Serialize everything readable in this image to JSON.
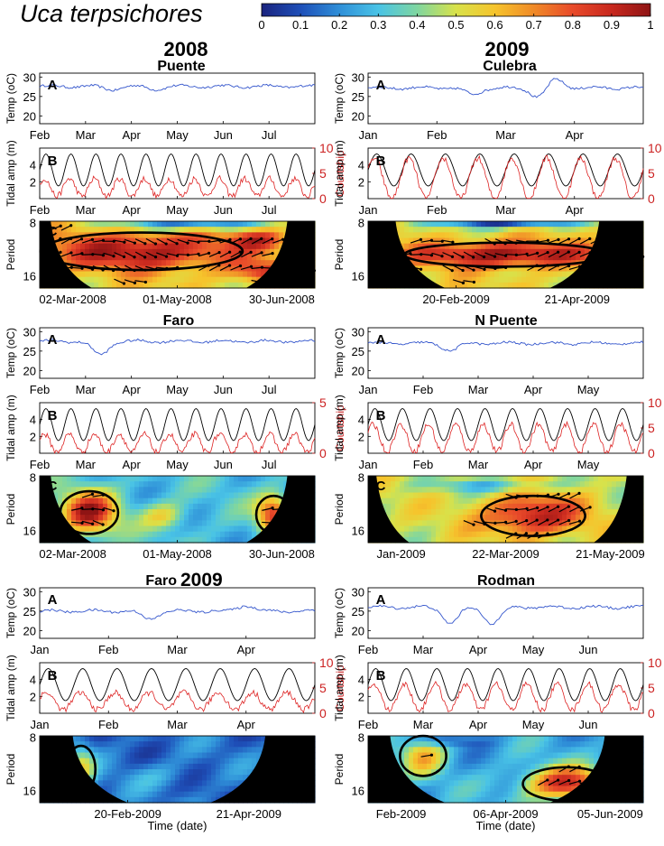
{
  "figure": {
    "title": "Uca terpsichores",
    "colorbar": {
      "ticks": [
        "0",
        "0.1",
        "0.2",
        "0.3",
        "0.4",
        "0.5",
        "0.6",
        "0.7",
        "0.8",
        "0.9",
        "1"
      ],
      "colors": [
        "#1a237e",
        "#1e4fb8",
        "#2f8fd8",
        "#49c3e6",
        "#7fd6a0",
        "#d8e24a",
        "#f6c42c",
        "#f08a28",
        "#e84a2a",
        "#c8281e",
        "#8e1414"
      ]
    },
    "year_labels": {
      "left": "2008",
      "right": "2009",
      "faro2009_prefix": "Faro",
      "faro2009_year": "2009"
    },
    "panel_letters": {
      "a": "A",
      "b": "B",
      "c": "C"
    },
    "axis_labels": {
      "temp": "Temp (",
      "temp_unit": "oC)",
      "tidal": "Tidal amp (m)",
      "courtship": "Courtship",
      "period": "Period",
      "time": "Time (date)"
    }
  },
  "chart_data": [
    {
      "site": "Puente",
      "year": "2008",
      "temp": {
        "type": "line",
        "ylim": [
          18,
          31
        ],
        "yticks": [
          "20",
          "25",
          "30"
        ],
        "xticks": [
          "Feb",
          "Mar",
          "Apr",
          "May",
          "Jun",
          "Jul"
        ],
        "base": 27.6,
        "dips": [
          [
            0.26,
            26.8
          ],
          [
            0.42,
            26.9
          ]
        ],
        "color": "#3355cc"
      },
      "tide": {
        "type": "line",
        "ylim_left": [
          0,
          6
        ],
        "yticks_left": [
          "2",
          "4"
        ],
        "ylim_right": [
          0,
          10
        ],
        "yticks_right": [
          "0",
          "5",
          "10"
        ],
        "xticks": [
          "Feb",
          "Mar",
          "Apr",
          "May",
          "Jun",
          "Jul"
        ],
        "cycles": 11,
        "courtship_scale": 0.8,
        "courtship_mid": 2.2
      },
      "wavelet": {
        "type": "heatmap",
        "yticks": [
          "8",
          "16"
        ],
        "xticks": [
          "02-Mar-2008",
          "01-May-2008",
          "30-Jun-2008"
        ],
        "coi_left": 0.04,
        "coi_right": 0.9,
        "cone_depth": 0.15,
        "background": 0.55,
        "blobs": [
          [
            0.37,
            0.45,
            0.35,
            0.28,
            0.42
          ],
          [
            0.8,
            0.28,
            0.1,
            0.15,
            0.3
          ],
          [
            0.82,
            0.75,
            0.12,
            0.15,
            0.3
          ],
          [
            0.55,
            0.05,
            0.25,
            0.08,
            -0.45
          ]
        ]
      }
    },
    {
      "site": "Culebra",
      "year": "2009",
      "temp": {
        "type": "line",
        "ylim": [
          18,
          31
        ],
        "yticks": [
          "20",
          "25",
          "30"
        ],
        "xticks": [
          "Jan",
          "Feb",
          "Mar",
          "Apr"
        ],
        "base": 27.2,
        "dips": [
          [
            0.38,
            25.5
          ],
          [
            0.62,
            24.8
          ],
          [
            0.68,
            29.5
          ]
        ],
        "color": "#3355cc"
      },
      "tide": {
        "type": "line",
        "ylim_left": [
          0,
          6
        ],
        "yticks_left": [
          "2",
          "4"
        ],
        "ylim_right": [
          0,
          10
        ],
        "yticks_right": [
          "0",
          "5",
          "10"
        ],
        "xticks": [
          "Jan",
          "Feb",
          "Mar",
          "Apr"
        ],
        "cycles": 8,
        "courtship_scale": 1.0,
        "courtship_mid": 4.0
      },
      "wavelet": {
        "type": "heatmap",
        "yticks": [
          "8",
          "16"
        ],
        "xticks": [
          "20-Feb-2009",
          "21-Apr-2009"
        ],
        "coi_left": 0.1,
        "coi_right": 0.84,
        "cone_depth": 0.18,
        "background": 0.55,
        "blobs": [
          [
            0.5,
            0.5,
            0.35,
            0.18,
            0.45
          ],
          [
            0.5,
            0.05,
            0.25,
            0.06,
            -0.5
          ]
        ]
      }
    },
    {
      "site": "Faro",
      "year": "2008",
      "temp": {
        "type": "line",
        "ylim": [
          18,
          31
        ],
        "yticks": [
          "20",
          "25",
          "30"
        ],
        "xticks": [
          "Feb",
          "Mar",
          "Apr",
          "May",
          "Jun",
          "Jul"
        ],
        "base": 27.5,
        "dips": [
          [
            0.22,
            24.0
          ]
        ],
        "color": "#3355cc"
      },
      "tide": {
        "type": "line",
        "ylim_left": [
          0,
          6
        ],
        "yticks_left": [
          "2",
          "4"
        ],
        "ylim_right": [
          0,
          5
        ],
        "yticks_right": [
          "0",
          "5"
        ],
        "xticks": [
          "Feb",
          "Mar",
          "Apr",
          "May",
          "Jun",
          "Jul"
        ],
        "cycles": 11,
        "courtship_scale": 0.9,
        "courtship_mid": 2.0
      },
      "wavelet": {
        "type": "heatmap",
        "yticks": [
          "8",
          "16"
        ],
        "xticks": [
          "02-Mar-2008",
          "01-May-2008",
          "30-Jun-2008"
        ],
        "coi_left": 0.04,
        "coi_right": 0.9,
        "cone_depth": 0.15,
        "background": 0.3,
        "blobs": [
          [
            0.18,
            0.55,
            0.1,
            0.32,
            0.65
          ],
          [
            0.45,
            0.6,
            0.08,
            0.2,
            0.25
          ],
          [
            0.85,
            0.58,
            0.06,
            0.28,
            0.55
          ]
        ]
      }
    },
    {
      "site": "N Puente",
      "year": "2009",
      "temp": {
        "type": "line",
        "ylim": [
          18,
          31
        ],
        "yticks": [
          "20",
          "25",
          "30"
        ],
        "xticks": [
          "Jan",
          "Feb",
          "Mar",
          "Apr",
          "May"
        ],
        "base": 27.0,
        "dips": [
          [
            0.3,
            25.2
          ]
        ],
        "color": "#3355cc"
      },
      "tide": {
        "type": "line",
        "ylim_left": [
          0,
          6
        ],
        "yticks_left": [
          "2",
          "4"
        ],
        "ylim_right": [
          0,
          10
        ],
        "yticks_right": [
          "0",
          "5",
          "10"
        ],
        "xticks": [
          "Jan",
          "Feb",
          "Mar",
          "Apr",
          "May"
        ],
        "cycles": 10,
        "courtship_scale": 0.9,
        "courtship_mid": 3.0
      },
      "wavelet": {
        "type": "heatmap",
        "yticks": [
          "8",
          "16"
        ],
        "xticks": [
          "Jan-2009",
          "22-Mar-2009",
          "21-May-2009"
        ],
        "coi_left": 0.03,
        "coi_right": 0.94,
        "cone_depth": 0.12,
        "background": 0.5,
        "blobs": [
          [
            0.6,
            0.6,
            0.18,
            0.3,
            0.45
          ],
          [
            0.45,
            0.15,
            0.25,
            0.1,
            -0.2
          ]
        ]
      }
    },
    {
      "site": "Faro",
      "year": "2009",
      "temp": {
        "type": "line",
        "ylim": [
          18,
          31
        ],
        "yticks": [
          "20",
          "25",
          "30"
        ],
        "xticks": [
          "Jan",
          "Feb",
          "Mar",
          "Apr"
        ],
        "base": 25.0,
        "dips": [
          [
            0.4,
            23.0
          ],
          [
            0.75,
            26.5
          ]
        ],
        "color": "#3355cc"
      },
      "tide": {
        "type": "line",
        "ylim_left": [
          0,
          6
        ],
        "yticks_left": [
          "2",
          "4"
        ],
        "ylim_right": [
          0,
          10
        ],
        "yticks_right": [
          "0",
          "5",
          "10"
        ],
        "xticks": [
          "Jan",
          "Feb",
          "Mar",
          "Apr"
        ],
        "cycles": 8,
        "courtship_scale": 0.7,
        "courtship_mid": 2.4
      },
      "wavelet": {
        "type": "heatmap",
        "yticks": [
          "8",
          "16"
        ],
        "xticks": [
          "20-Feb-2009",
          "21-Apr-2009"
        ],
        "coi_left": 0.12,
        "coi_right": 0.82,
        "cone_depth": 0.2,
        "background": 0.15,
        "blobs": [
          [
            0.15,
            0.5,
            0.05,
            0.35,
            0.35
          ],
          [
            0.42,
            0.6,
            0.12,
            0.2,
            0.1
          ]
        ]
      }
    },
    {
      "site": "Rodman",
      "year": "2009",
      "temp": {
        "type": "line",
        "ylim": [
          18,
          31
        ],
        "yticks": [
          "20",
          "25",
          "30"
        ],
        "xticks": [
          "Feb",
          "Mar",
          "Apr",
          "May",
          "Jun"
        ],
        "base": 26.0,
        "dips": [
          [
            0.3,
            22.0
          ],
          [
            0.45,
            21.8
          ]
        ],
        "color": "#3355cc"
      },
      "tide": {
        "type": "line",
        "ylim_left": [
          0,
          6
        ],
        "yticks_left": [
          "2",
          "4"
        ],
        "ylim_right": [
          0,
          10
        ],
        "yticks_right": [
          "0",
          "5",
          "10"
        ],
        "xticks": [
          "Feb",
          "Mar",
          "Apr",
          "May",
          "Jun"
        ],
        "cycles": 9,
        "courtship_scale": 0.8,
        "courtship_mid": 3.2
      },
      "wavelet": {
        "type": "heatmap",
        "yticks": [
          "8",
          "16"
        ],
        "xticks": [
          "Feb-2009",
          "06-Apr-2009",
          "05-Jun-2009"
        ],
        "coi_left": 0.08,
        "coi_right": 0.86,
        "cone_depth": 0.2,
        "background": 0.25,
        "blobs": [
          [
            0.72,
            0.72,
            0.15,
            0.25,
            0.65
          ],
          [
            0.2,
            0.3,
            0.08,
            0.3,
            0.35
          ],
          [
            0.28,
            0.08,
            0.15,
            0.08,
            -0.15
          ]
        ]
      }
    }
  ]
}
